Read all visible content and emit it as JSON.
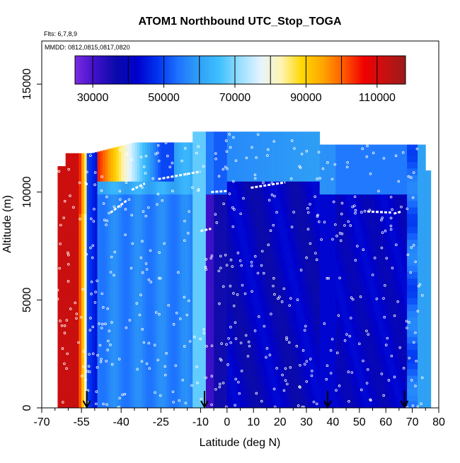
{
  "chart_data": {
    "type": "heatmap",
    "title": "ATOM1 Northbound UTC_Stop_TOGA",
    "flights_note": "Flts: 6,7,8,9",
    "dates_note": "MMDD: 0812,0815,0817,0820",
    "xlabel": "Latitude (deg N)",
    "ylabel": "Altitude (m)",
    "xlim": [
      -70,
      80
    ],
    "ylim": [
      0,
      17000
    ],
    "x_ticks": [
      -70,
      -55,
      -40,
      -25,
      -10,
      0,
      10,
      20,
      30,
      40,
      50,
      60,
      70,
      80
    ],
    "x_minor_ticks": [
      -65,
      -60,
      -50,
      -45,
      -35,
      -30,
      -20,
      -15,
      -5,
      5,
      15,
      25,
      35,
      45,
      55,
      65,
      75
    ],
    "y_ticks": [
      0,
      5000,
      10000,
      15000
    ],
    "colorbar": {
      "min": 25000,
      "max": 118000,
      "tick_values": [
        30000,
        50000,
        70000,
        90000,
        110000
      ],
      "tick_labels": [
        "30000",
        "50000",
        "70000",
        "90000",
        "110000"
      ],
      "separators": [
        40000,
        60000,
        80000,
        100000
      ],
      "colors": [
        "#7B2BE2",
        "#3D10C8",
        "#0A0AAA",
        "#0000CD",
        "#0033F0",
        "#1E73FF",
        "#2FA0F5",
        "#3FC0FF",
        "#9ADFFF",
        "#E6F4FF",
        "#FFF4B0",
        "#FFD700",
        "#FFA500",
        "#FF5A00",
        "#F00000",
        "#C81010",
        "#9B1B1B"
      ]
    },
    "profile_markers": [
      {
        "lat": -53
      },
      {
        "lat": -8.5
      },
      {
        "lat": 38
      },
      {
        "lat": 67
      }
    ]
  }
}
